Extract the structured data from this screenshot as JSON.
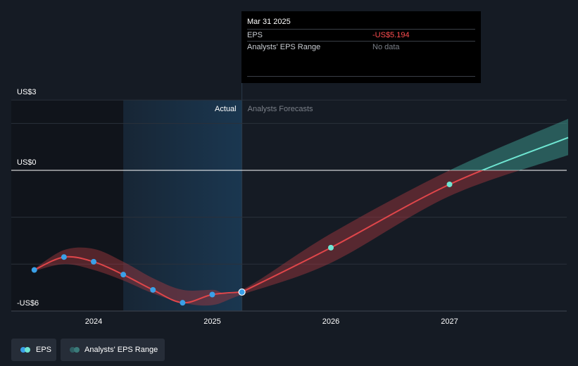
{
  "colors": {
    "background": "#151b24",
    "actual_line": "#e0464a",
    "actual_point": "#3aa0e8",
    "forecast_positive": "#6fe6d2",
    "band_negative": "#a83a40",
    "band_positive": "#3a8f86",
    "actual_region": "#1b3a55",
    "pre_region": "#10141b",
    "zero_line": "#ffffff",
    "grid": "#2a313b",
    "eps_negative_text": "#ff4d4f",
    "muted_text": "#7b8089"
  },
  "tooltip": {
    "date": "Mar 31 2025",
    "eps_label": "EPS",
    "eps_value": "-US$5.194",
    "range_label": "Analysts' EPS Range",
    "range_value": "No data"
  },
  "regions": {
    "actual_label": "Actual",
    "forecast_label": "Analysts Forecasts"
  },
  "legend": {
    "eps_label": "EPS",
    "range_label": "Analysts' EPS Range"
  },
  "chart_data": {
    "type": "line",
    "xlabel": "",
    "ylabel": "",
    "x_ticks": [
      "2024",
      "2025",
      "2026",
      "2027"
    ],
    "y_ticks": [
      {
        "value": 3,
        "label": "US$3"
      },
      {
        "value": 0,
        "label": "US$0"
      },
      {
        "value": -6,
        "label": "-US$6"
      }
    ],
    "ylim": [
      -6,
      3
    ],
    "xlim": [
      2023.5,
      2028.0
    ],
    "actual_region": [
      2024.25,
      2025.25
    ],
    "grid": true,
    "series": [
      {
        "name": "EPS",
        "kind": "actual",
        "points": [
          {
            "x": 2023.5,
            "y": -4.25
          },
          {
            "x": 2023.75,
            "y": -3.7
          },
          {
            "x": 2024.0,
            "y": -3.9
          },
          {
            "x": 2024.25,
            "y": -4.45
          },
          {
            "x": 2024.5,
            "y": -5.1
          },
          {
            "x": 2024.75,
            "y": -5.65
          },
          {
            "x": 2025.0,
            "y": -5.3
          },
          {
            "x": 2025.25,
            "y": -5.194
          }
        ]
      },
      {
        "name": "EPS",
        "kind": "forecast",
        "points": [
          {
            "x": 2025.25,
            "y": -5.194
          },
          {
            "x": 2026.0,
            "y": -3.3
          },
          {
            "x": 2027.0,
            "y": -0.6
          },
          {
            "x": 2028.0,
            "y": 1.4
          }
        ]
      }
    ],
    "range_band": [
      {
        "x": 2023.5,
        "low": -4.3,
        "high": -4.2
      },
      {
        "x": 2023.75,
        "low": -4.0,
        "high": -3.4
      },
      {
        "x": 2024.0,
        "low": -4.25,
        "high": -3.35
      },
      {
        "x": 2024.25,
        "low": -4.7,
        "high": -3.9
      },
      {
        "x": 2024.5,
        "low": -5.25,
        "high": -4.6
      },
      {
        "x": 2024.75,
        "low": -5.65,
        "high": -5.1
      },
      {
        "x": 2025.0,
        "low": -5.75,
        "high": -5.1
      },
      {
        "x": 2025.25,
        "low": -5.3,
        "high": -5.1
      },
      {
        "x": 2026.0,
        "low": -3.95,
        "high": -2.7
      },
      {
        "x": 2027.0,
        "low": -1.1,
        "high": 0.0
      },
      {
        "x": 2028.0,
        "low": 0.65,
        "high": 2.2
      }
    ]
  }
}
